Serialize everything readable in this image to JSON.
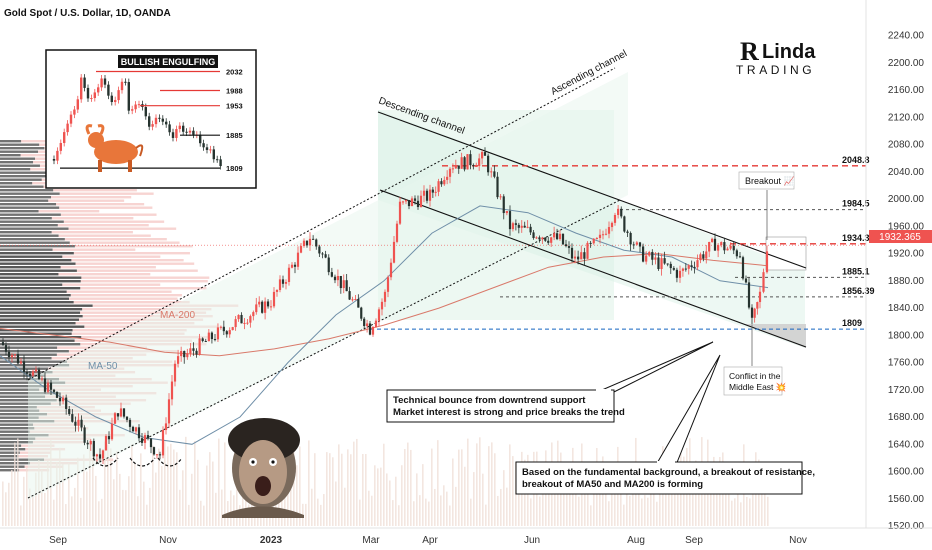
{
  "header": {
    "symbol_title": "Gold Spot / U.S. Dollar, 1D, OANDA"
  },
  "brand": {
    "logo_word_1": "Linda",
    "logo_word_2": "TRADING",
    "logo_initial": "R"
  },
  "colors": {
    "up": "#ef5350",
    "down": "#26332f",
    "accent_red": "#e53935",
    "accent_blue": "#1565c0",
    "ma200": "#d9796a",
    "ma50": "#6f8fa8",
    "price_badge": "#ef5350"
  },
  "chart_data": {
    "type": "line",
    "title": "Gold Spot / U.S. Dollar, 1D, OANDA",
    "xlabel": "",
    "ylabel": "",
    "ylim": [
      1520,
      2260
    ],
    "x_ticks": [
      "Sep",
      "Nov",
      "2023",
      "Mar",
      "Apr",
      "Jun",
      "Aug",
      "Sep",
      "Nov"
    ],
    "y_ticks": [
      "2240.00",
      "2200.00",
      "2160.00",
      "2120.00",
      "2080.00",
      "2040.00",
      "2000.00",
      "1960.00",
      "1920.00",
      "1880.00",
      "1840.00",
      "1800.00",
      "1760.00",
      "1720.00",
      "1680.00",
      "1640.00",
      "1600.00",
      "1560.00",
      "1520.00"
    ],
    "current_price": "1932.365",
    "price_path": [
      {
        "x": "Aug",
        "y": 1790
      },
      {
        "x": "Sep",
        "y": 1705
      },
      {
        "x": "Sep",
        "y": 1620
      },
      {
        "x": "Oct",
        "y": 1690
      },
      {
        "x": "Nov",
        "y": 1625
      },
      {
        "x": "Nov",
        "y": 1760
      },
      {
        "x": "Dec",
        "y": 1800
      },
      {
        "x": "2023",
        "y": 1850
      },
      {
        "x": "Feb",
        "y": 1945
      },
      {
        "x": "Feb",
        "y": 1890
      },
      {
        "x": "Mar",
        "y": 1810
      },
      {
        "x": "Mar",
        "y": 1860
      },
      {
        "x": "Mar",
        "y": 1990
      },
      {
        "x": "Apr",
        "y": 2005
      },
      {
        "x": "Apr",
        "y": 2050
      },
      {
        "x": "May",
        "y": 2060
      },
      {
        "x": "May",
        "y": 1960
      },
      {
        "x": "Jun",
        "y": 1940
      },
      {
        "x": "Jun",
        "y": 1910
      },
      {
        "x": "Jul",
        "y": 1940
      },
      {
        "x": "Jul",
        "y": 1985
      },
      {
        "x": "Aug",
        "y": 1920
      },
      {
        "x": "Aug",
        "y": 1890
      },
      {
        "x": "Sep",
        "y": 1935
      },
      {
        "x": "Sep",
        "y": 1920
      },
      {
        "x": "Oct",
        "y": 1815
      },
      {
        "x": "Oct",
        "y": 1860
      },
      {
        "x": "Oct",
        "y": 1932
      }
    ],
    "series": [
      {
        "name": "MA-200",
        "values": [
          1810,
          1800,
          1790,
          1775,
          1770,
          1780,
          1795,
          1815,
          1840,
          1870,
          1900,
          1915,
          1920,
          1910,
          1902
        ]
      },
      {
        "name": "MA-50",
        "values": [
          1770,
          1720,
          1680,
          1650,
          1640,
          1680,
          1760,
          1830,
          1880,
          1950,
          1990,
          1980,
          1950,
          1925,
          1915,
          1880,
          1870
        ]
      }
    ],
    "levels": [
      {
        "label": "2048.8",
        "value": 2048.8,
        "style": "red-dashed"
      },
      {
        "label": "1984.5",
        "value": 1984.5,
        "style": "dark-dashed"
      },
      {
        "label": "1934.3",
        "value": 1934.3,
        "style": "red-dashed"
      },
      {
        "label": "1885.1",
        "value": 1885.1,
        "style": "dark-dashed"
      },
      {
        "label": "1856.39",
        "value": 1856.39,
        "style": "dark-dashed"
      },
      {
        "label": "1809",
        "value": 1809,
        "style": "blue-dashed"
      }
    ],
    "channel_labels": {
      "ascending": "Ascending channel",
      "descending": "Descending channel"
    },
    "annotations": {
      "breakout": "Breakout 📈",
      "conflict_line1": "Conflict in the",
      "conflict_line2": "Middle East 💥",
      "bounce_line1": "Technical bounce from downtrend support",
      "bounce_line2": "Market interest is strong and price breaks the trend",
      "fund_line1": "Based on the fundamental background, a breakout of resistance,",
      "fund_line2": "breakout of MA50 and MA200 is forming"
    },
    "inset": {
      "title": "BULLISH ENGULFING",
      "levels": [
        "2032",
        "1988",
        "1953",
        "1885",
        "1809"
      ]
    },
    "legend_position": "none",
    "grid": false
  }
}
